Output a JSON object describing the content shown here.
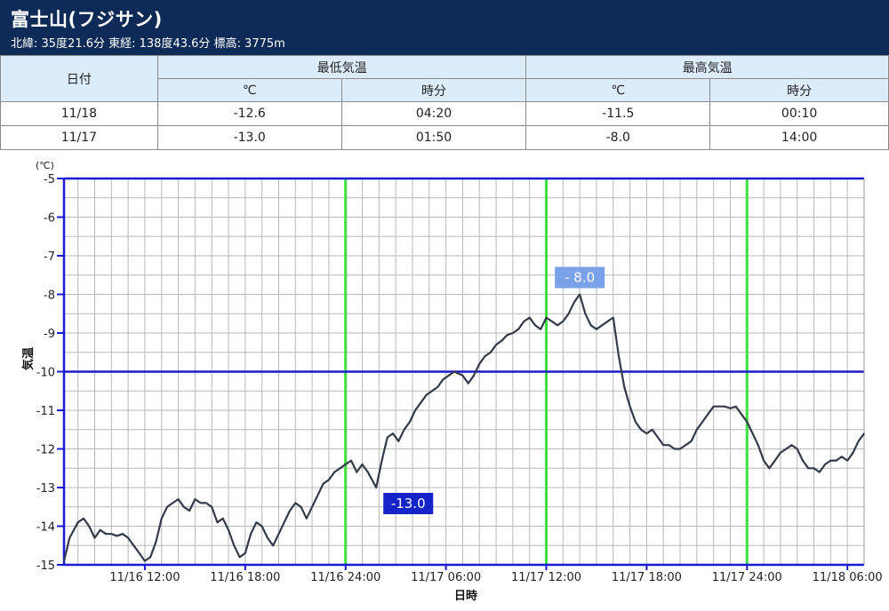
{
  "station": {
    "title": "富士山(フジサン)",
    "info": "北緯: 35度21.6分 東経: 138度43.6分 標高: 3775m"
  },
  "table": {
    "date_header": "日付",
    "min_header": "最低気温",
    "max_header": "最高気温",
    "unit_header": "℃",
    "time_header": "時分",
    "rows": [
      {
        "date": "11/18",
        "min_temp": "-12.6",
        "min_time": "04:20",
        "max_temp": "-11.5",
        "max_time": "00:10"
      },
      {
        "date": "11/17",
        "min_temp": "-13.0",
        "min_time": "01:50",
        "max_temp": "-8.0",
        "max_time": "14:00"
      }
    ]
  },
  "chart_data": {
    "type": "line",
    "ylabel": "気温",
    "yunit": "(℃)",
    "xlabel": "日時",
    "ylim": [
      -15,
      -5
    ],
    "yticks": [
      -5,
      -6,
      -7,
      -8,
      -9,
      -10,
      -11,
      -12,
      -13,
      -14,
      -15
    ],
    "xlim": [
      "2023-11-16T07:10",
      "2023-11-18T07:00"
    ],
    "xticks": [
      {
        "x": "2023-11-16T12:00",
        "label": "11/16 12:00"
      },
      {
        "x": "2023-11-16T18:00",
        "label": "11/16 18:00"
      },
      {
        "x": "2023-11-17T00:00",
        "label": "11/16 24:00"
      },
      {
        "x": "2023-11-17T06:00",
        "label": "11/17 06:00"
      },
      {
        "x": "2023-11-17T12:00",
        "label": "11/17 12:00"
      },
      {
        "x": "2023-11-17T18:00",
        "label": "11/17 18:00"
      },
      {
        "x": "2023-11-18T00:00",
        "label": "11/17 24:00"
      },
      {
        "x": "2023-11-18T06:00",
        "label": "11/18 06:00"
      }
    ],
    "day_lines": [
      "2023-11-17T00:00",
      "2023-11-17T12:00",
      "2023-11-18T00:00"
    ],
    "ref_lines": [
      -5,
      -10
    ],
    "annotations": [
      {
        "label": "-13.0",
        "x": "2023-11-17T01:50",
        "y": -13.0,
        "style": "min"
      },
      {
        "label": "- 8.0",
        "x": "2023-11-17T14:00",
        "y": -8.0,
        "style": "max"
      }
    ],
    "line_color": "#333a4a",
    "grid": true,
    "points": [
      [
        "2023-11-16T07:10",
        -14.9
      ],
      [
        "2023-11-16T07:30",
        -14.3
      ],
      [
        "2023-11-16T08:00",
        -13.9
      ],
      [
        "2023-11-16T08:20",
        -13.8
      ],
      [
        "2023-11-16T08:40",
        -14.0
      ],
      [
        "2023-11-16T09:00",
        -14.3
      ],
      [
        "2023-11-16T09:20",
        -14.1
      ],
      [
        "2023-11-16T09:40",
        -14.2
      ],
      [
        "2023-11-16T10:00",
        -14.2
      ],
      [
        "2023-11-16T10:20",
        -14.25
      ],
      [
        "2023-11-16T10:40",
        -14.2
      ],
      [
        "2023-11-16T11:00",
        -14.3
      ],
      [
        "2023-11-16T11:20",
        -14.5
      ],
      [
        "2023-11-16T11:40",
        -14.7
      ],
      [
        "2023-11-16T12:00",
        -14.9
      ],
      [
        "2023-11-16T12:20",
        -14.8
      ],
      [
        "2023-11-16T12:40",
        -14.4
      ],
      [
        "2023-11-16T13:00",
        -13.8
      ],
      [
        "2023-11-16T13:20",
        -13.5
      ],
      [
        "2023-11-16T13:40",
        -13.4
      ],
      [
        "2023-11-16T14:00",
        -13.3
      ],
      [
        "2023-11-16T14:20",
        -13.5
      ],
      [
        "2023-11-16T14:40",
        -13.6
      ],
      [
        "2023-11-16T15:00",
        -13.3
      ],
      [
        "2023-11-16T15:20",
        -13.4
      ],
      [
        "2023-11-16T15:40",
        -13.4
      ],
      [
        "2023-11-16T16:00",
        -13.5
      ],
      [
        "2023-11-16T16:20",
        -13.9
      ],
      [
        "2023-11-16T16:40",
        -13.8
      ],
      [
        "2023-11-16T17:00",
        -14.1
      ],
      [
        "2023-11-16T17:20",
        -14.5
      ],
      [
        "2023-11-16T17:40",
        -14.8
      ],
      [
        "2023-11-16T18:00",
        -14.7
      ],
      [
        "2023-11-16T18:20",
        -14.2
      ],
      [
        "2023-11-16T18:40",
        -13.9
      ],
      [
        "2023-11-16T19:00",
        -14.0
      ],
      [
        "2023-11-16T19:20",
        -14.3
      ],
      [
        "2023-11-16T19:40",
        -14.5
      ],
      [
        "2023-11-16T20:00",
        -14.2
      ],
      [
        "2023-11-16T20:20",
        -13.9
      ],
      [
        "2023-11-16T20:40",
        -13.6
      ],
      [
        "2023-11-16T21:00",
        -13.4
      ],
      [
        "2023-11-16T21:20",
        -13.5
      ],
      [
        "2023-11-16T21:40",
        -13.8
      ],
      [
        "2023-11-16T22:00",
        -13.5
      ],
      [
        "2023-11-16T22:20",
        -13.2
      ],
      [
        "2023-11-16T22:40",
        -12.9
      ],
      [
        "2023-11-16T23:00",
        -12.8
      ],
      [
        "2023-11-16T23:20",
        -12.6
      ],
      [
        "2023-11-16T23:40",
        -12.5
      ],
      [
        "2023-11-17T00:00",
        -12.4
      ],
      [
        "2023-11-17T00:20",
        -12.3
      ],
      [
        "2023-11-17T00:40",
        -12.6
      ],
      [
        "2023-11-17T01:00",
        -12.4
      ],
      [
        "2023-11-17T01:20",
        -12.6
      ],
      [
        "2023-11-17T01:50",
        -13.0
      ],
      [
        "2023-11-17T02:10",
        -12.3
      ],
      [
        "2023-11-17T02:30",
        -11.7
      ],
      [
        "2023-11-17T02:50",
        -11.6
      ],
      [
        "2023-11-17T03:10",
        -11.8
      ],
      [
        "2023-11-17T03:30",
        -11.5
      ],
      [
        "2023-11-17T03:50",
        -11.3
      ],
      [
        "2023-11-17T04:10",
        -11.0
      ],
      [
        "2023-11-17T04:30",
        -10.8
      ],
      [
        "2023-11-17T04:50",
        -10.6
      ],
      [
        "2023-11-17T05:10",
        -10.5
      ],
      [
        "2023-11-17T05:30",
        -10.4
      ],
      [
        "2023-11-17T05:50",
        -10.2
      ],
      [
        "2023-11-17T06:10",
        -10.1
      ],
      [
        "2023-11-17T06:30",
        -10.0
      ],
      [
        "2023-11-17T07:00",
        -10.1
      ],
      [
        "2023-11-17T07:20",
        -10.3
      ],
      [
        "2023-11-17T07:40",
        -10.1
      ],
      [
        "2023-11-17T08:00",
        -9.8
      ],
      [
        "2023-11-17T08:20",
        -9.6
      ],
      [
        "2023-11-17T08:40",
        -9.5
      ],
      [
        "2023-11-17T09:00",
        -9.3
      ],
      [
        "2023-11-17T09:20",
        -9.2
      ],
      [
        "2023-11-17T09:40",
        -9.05
      ],
      [
        "2023-11-17T10:00",
        -9.0
      ],
      [
        "2023-11-17T10:20",
        -8.9
      ],
      [
        "2023-11-17T10:40",
        -8.7
      ],
      [
        "2023-11-17T11:00",
        -8.6
      ],
      [
        "2023-11-17T11:20",
        -8.8
      ],
      [
        "2023-11-17T11:40",
        -8.9
      ],
      [
        "2023-11-17T12:00",
        -8.6
      ],
      [
        "2023-11-17T12:20",
        -8.7
      ],
      [
        "2023-11-17T12:40",
        -8.8
      ],
      [
        "2023-11-17T13:00",
        -8.7
      ],
      [
        "2023-11-17T13:20",
        -8.5
      ],
      [
        "2023-11-17T13:40",
        -8.2
      ],
      [
        "2023-11-17T14:00",
        -8.0
      ],
      [
        "2023-11-17T14:20",
        -8.5
      ],
      [
        "2023-11-17T14:40",
        -8.8
      ],
      [
        "2023-11-17T15:00",
        -8.9
      ],
      [
        "2023-11-17T15:20",
        -8.8
      ],
      [
        "2023-11-17T15:40",
        -8.7
      ],
      [
        "2023-11-17T16:00",
        -8.6
      ],
      [
        "2023-11-17T16:20",
        -9.6
      ],
      [
        "2023-11-17T16:40",
        -10.4
      ],
      [
        "2023-11-17T17:00",
        -10.9
      ],
      [
        "2023-11-17T17:20",
        -11.3
      ],
      [
        "2023-11-17T17:40",
        -11.5
      ],
      [
        "2023-11-17T18:00",
        -11.6
      ],
      [
        "2023-11-17T18:20",
        -11.5
      ],
      [
        "2023-11-17T18:40",
        -11.7
      ],
      [
        "2023-11-17T19:00",
        -11.9
      ],
      [
        "2023-11-17T19:20",
        -11.9
      ],
      [
        "2023-11-17T19:40",
        -12.0
      ],
      [
        "2023-11-17T20:00",
        -12.0
      ],
      [
        "2023-11-17T20:20",
        -11.9
      ],
      [
        "2023-11-17T20:40",
        -11.8
      ],
      [
        "2023-11-17T21:00",
        -11.5
      ],
      [
        "2023-11-17T21:20",
        -11.3
      ],
      [
        "2023-11-17T21:40",
        -11.1
      ],
      [
        "2023-11-17T22:00",
        -10.9
      ],
      [
        "2023-11-17T22:20",
        -10.9
      ],
      [
        "2023-11-17T22:40",
        -10.9
      ],
      [
        "2023-11-17T23:00",
        -10.95
      ],
      [
        "2023-11-17T23:20",
        -10.9
      ],
      [
        "2023-11-17T23:40",
        -11.1
      ],
      [
        "2023-11-18T00:00",
        -11.3
      ],
      [
        "2023-11-18T00:20",
        -11.6
      ],
      [
        "2023-11-18T00:40",
        -11.9
      ],
      [
        "2023-11-18T01:00",
        -12.3
      ],
      [
        "2023-11-18T01:20",
        -12.5
      ],
      [
        "2023-11-18T01:40",
        -12.3
      ],
      [
        "2023-11-18T02:00",
        -12.1
      ],
      [
        "2023-11-18T02:20",
        -12.0
      ],
      [
        "2023-11-18T02:40",
        -11.9
      ],
      [
        "2023-11-18T03:00",
        -12.0
      ],
      [
        "2023-11-18T03:20",
        -12.3
      ],
      [
        "2023-11-18T03:40",
        -12.5
      ],
      [
        "2023-11-18T04:00",
        -12.5
      ],
      [
        "2023-11-18T04:20",
        -12.6
      ],
      [
        "2023-11-18T04:40",
        -12.4
      ],
      [
        "2023-11-18T05:00",
        -12.3
      ],
      [
        "2023-11-18T05:20",
        -12.3
      ],
      [
        "2023-11-18T05:40",
        -12.2
      ],
      [
        "2023-11-18T06:00",
        -12.3
      ],
      [
        "2023-11-18T06:20",
        -12.1
      ],
      [
        "2023-11-18T06:40",
        -11.8
      ],
      [
        "2023-11-18T07:00",
        -11.6
      ]
    ]
  }
}
